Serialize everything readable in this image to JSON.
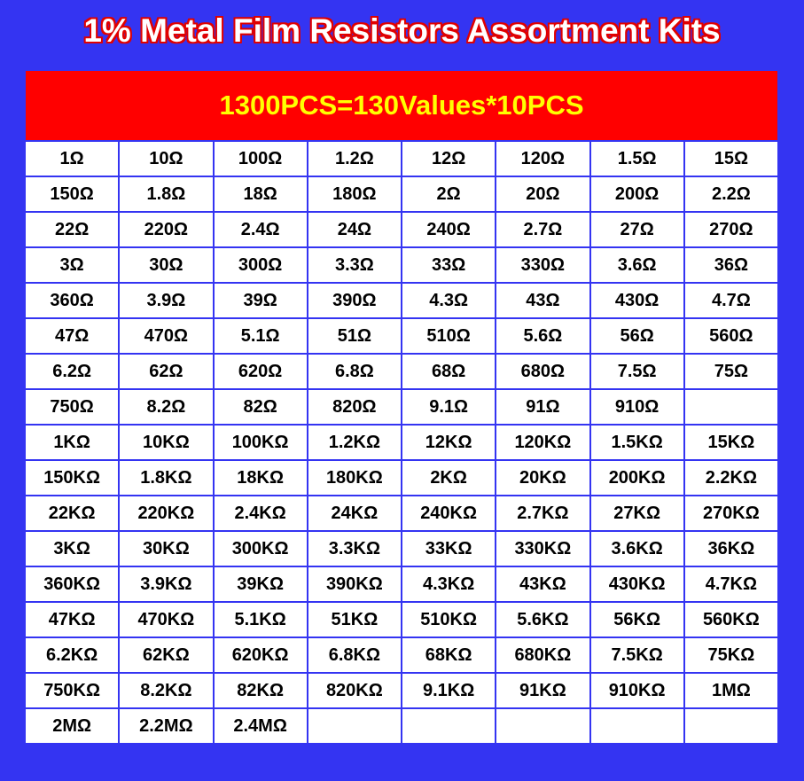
{
  "header": {
    "title": "1% Metal Film Resistors Assortment Kits"
  },
  "table": {
    "caption": "1300PCS=130Values*10PCS",
    "rows": [
      [
        "1Ω",
        "10Ω",
        "100Ω",
        "1.2Ω",
        "12Ω",
        "120Ω",
        "1.5Ω",
        "15Ω"
      ],
      [
        "150Ω",
        "1.8Ω",
        "18Ω",
        "180Ω",
        "2Ω",
        "20Ω",
        "200Ω",
        "2.2Ω"
      ],
      [
        "22Ω",
        "220Ω",
        "2.4Ω",
        "24Ω",
        "240Ω",
        "2.7Ω",
        "27Ω",
        "270Ω"
      ],
      [
        "3Ω",
        "30Ω",
        "300Ω",
        "3.3Ω",
        "33Ω",
        "330Ω",
        "3.6Ω",
        "36Ω"
      ],
      [
        "360Ω",
        "3.9Ω",
        "39Ω",
        "390Ω",
        "4.3Ω",
        "43Ω",
        "430Ω",
        "4.7Ω"
      ],
      [
        "47Ω",
        "470Ω",
        "5.1Ω",
        "51Ω",
        "510Ω",
        "5.6Ω",
        "56Ω",
        "560Ω"
      ],
      [
        "6.2Ω",
        "62Ω",
        "620Ω",
        "6.8Ω",
        "68Ω",
        "680Ω",
        "7.5Ω",
        "75Ω"
      ],
      [
        "750Ω",
        "8.2Ω",
        "82Ω",
        "820Ω",
        "9.1Ω",
        "91Ω",
        "910Ω"
      ],
      [
        "1KΩ",
        "10KΩ",
        "100KΩ",
        "1.2KΩ",
        "12KΩ",
        "120KΩ",
        "1.5KΩ",
        "15KΩ"
      ],
      [
        "150KΩ",
        "1.8KΩ",
        "18KΩ",
        "180KΩ",
        "2KΩ",
        "20KΩ",
        "200KΩ",
        "2.2KΩ"
      ],
      [
        "22KΩ",
        "220KΩ",
        "2.4KΩ",
        "24KΩ",
        "240KΩ",
        "2.7KΩ",
        "27KΩ",
        "270KΩ"
      ],
      [
        "3KΩ",
        "30KΩ",
        "300KΩ",
        "3.3KΩ",
        "33KΩ",
        "330KΩ",
        "3.6KΩ",
        "36KΩ"
      ],
      [
        "360KΩ",
        "3.9KΩ",
        "39KΩ",
        "390KΩ",
        "4.3KΩ",
        "43KΩ",
        "430KΩ",
        "4.7KΩ"
      ],
      [
        "47KΩ",
        "470KΩ",
        "5.1KΩ",
        "51KΩ",
        "510KΩ",
        "5.6KΩ",
        "56KΩ",
        "560KΩ"
      ],
      [
        "6.2KΩ",
        "62KΩ",
        "620KΩ",
        "6.8KΩ",
        "68KΩ",
        "680KΩ",
        "7.5KΩ",
        "75KΩ"
      ],
      [
        "750KΩ",
        "8.2KΩ",
        "82KΩ",
        "820KΩ",
        "9.1KΩ",
        "91KΩ",
        "910KΩ",
        "1MΩ"
      ],
      [
        "2MΩ",
        "2.2MΩ",
        "2.4MΩ"
      ]
    ]
  }
}
